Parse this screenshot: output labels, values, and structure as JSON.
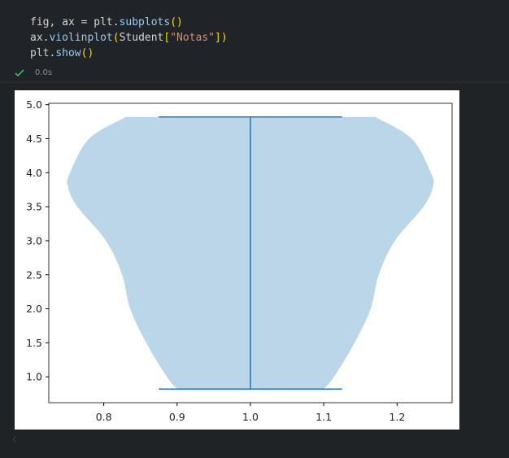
{
  "code_lines": [
    "fig, ax = plt.subplots()",
    "ax.violinplot(Student[\"Notas\"])",
    "plt.show()"
  ],
  "status": {
    "time": "0.0s"
  },
  "chart_data": {
    "type": "violin",
    "x": 1,
    "y": [
      0.82,
      1.0,
      1.5,
      2.0,
      2.5,
      3.0,
      3.5,
      3.8,
      4.0,
      4.5,
      4.82
    ],
    "half_widths": [
      0.1,
      0.114,
      0.142,
      0.164,
      0.175,
      0.197,
      0.236,
      0.249,
      0.246,
      0.22,
      0.17
    ],
    "min": 0.82,
    "max": 4.82,
    "body_color": "#bbd6e8",
    "line_color": "#1f77b4",
    "xlim": [
      0.725,
      1.275
    ],
    "xticks": [
      0.8,
      0.9,
      {
        "value": 1,
        "label": "1.0"
      },
      1.1,
      1.2
    ],
    "ylim": [
      0.62,
      5.02
    ],
    "yticks": [
      {
        "value": 1,
        "label": "1.0"
      },
      1.5,
      {
        "value": 2,
        "label": "2.0"
      },
      2.5,
      {
        "value": 3,
        "label": "3.0"
      },
      3.5,
      {
        "value": 4,
        "label": "4.0"
      },
      4.5,
      {
        "value": 5,
        "label": "5.0"
      }
    ]
  }
}
